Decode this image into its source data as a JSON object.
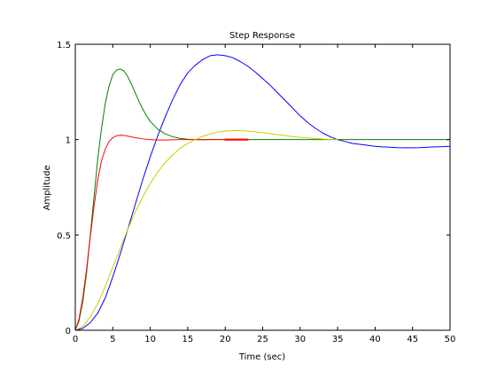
{
  "chart_data": {
    "type": "line",
    "title": "Step Response",
    "xlabel": "Time (sec)",
    "ylabel": "Amplitude",
    "xlim": [
      0,
      50
    ],
    "ylim": [
      0,
      1.5
    ],
    "xticks": [
      0,
      5,
      10,
      15,
      20,
      25,
      30,
      35,
      40,
      45,
      50
    ],
    "yticks": [
      0,
      0.5,
      1,
      1.5
    ],
    "xtick_labels": [
      "0",
      "5",
      "10",
      "15",
      "20",
      "25",
      "30",
      "35",
      "40",
      "45",
      "50"
    ],
    "ytick_labels": [
      "0",
      "0.5",
      "1",
      "1.5"
    ],
    "grid": false,
    "series": [
      {
        "color": "#0000ff",
        "x": [
          0,
          1,
          2,
          3,
          4,
          5,
          6,
          7,
          8,
          9,
          10,
          11,
          12,
          13,
          14,
          15,
          16,
          17,
          18,
          19,
          20,
          21,
          22,
          23,
          24,
          25,
          26,
          27,
          28,
          29,
          30,
          31,
          32,
          33,
          34,
          35,
          36,
          37,
          38,
          39,
          40,
          41,
          42,
          43,
          44,
          45,
          46,
          47,
          48,
          49,
          50
        ],
        "y": [
          0,
          0.01,
          0.04,
          0.09,
          0.17,
          0.28,
          0.4,
          0.53,
          0.66,
          0.79,
          0.91,
          1.02,
          1.12,
          1.21,
          1.29,
          1.35,
          1.39,
          1.42,
          1.44,
          1.445,
          1.44,
          1.43,
          1.41,
          1.385,
          1.355,
          1.32,
          1.285,
          1.245,
          1.205,
          1.165,
          1.125,
          1.09,
          1.06,
          1.035,
          1.015,
          1.0,
          0.99,
          0.98,
          0.975,
          0.97,
          0.965,
          0.962,
          0.96,
          0.958,
          0.957,
          0.957,
          0.958,
          0.96,
          0.962,
          0.963,
          0.965
        ]
      },
      {
        "color": "#008000",
        "x": [
          0,
          0.5,
          1,
          1.5,
          2,
          2.5,
          3,
          3.5,
          4,
          4.5,
          5,
          5.5,
          6,
          6.5,
          7,
          7.5,
          8,
          8.5,
          9,
          9.5,
          10,
          11,
          12,
          13,
          14,
          15,
          16,
          17,
          18,
          20,
          25,
          30,
          35,
          40,
          45,
          50
        ],
        "y": [
          0,
          0.05,
          0.15,
          0.3,
          0.5,
          0.7,
          0.9,
          1.06,
          1.19,
          1.28,
          1.34,
          1.365,
          1.37,
          1.36,
          1.33,
          1.29,
          1.245,
          1.2,
          1.16,
          1.125,
          1.095,
          1.055,
          1.03,
          1.015,
          1.006,
          1.002,
          1.0,
          0.999,
          1.0,
          1.0,
          1.0,
          1.0,
          1.0,
          1.0,
          1.0,
          1.0
        ]
      },
      {
        "color": "#ff0000",
        "x": [
          0,
          0.5,
          1,
          1.5,
          2,
          2.5,
          3,
          3.5,
          4,
          4.5,
          5,
          5.5,
          6,
          6.5,
          7,
          8,
          9,
          10,
          11,
          12,
          13,
          14,
          15,
          16,
          17,
          20,
          23
        ],
        "y": [
          0,
          0.06,
          0.17,
          0.32,
          0.49,
          0.65,
          0.79,
          0.89,
          0.95,
          0.99,
          1.01,
          1.02,
          1.023,
          1.022,
          1.018,
          1.01,
          1.004,
          1.0,
          0.998,
          0.998,
          0.999,
          1.0,
          1.0,
          1.0,
          1.0,
          1.0,
          1.0
        ]
      },
      {
        "color": "#cccc00",
        "x": [
          0,
          1,
          2,
          3,
          4,
          5,
          6,
          7,
          8,
          9,
          10,
          11,
          12,
          13,
          14,
          15,
          16,
          17,
          18,
          19,
          20,
          21,
          22,
          23,
          24,
          25,
          26,
          27,
          28,
          29,
          30,
          31,
          32,
          33,
          34,
          35
        ],
        "y": [
          0,
          0.02,
          0.07,
          0.14,
          0.23,
          0.33,
          0.43,
          0.53,
          0.62,
          0.7,
          0.77,
          0.83,
          0.88,
          0.92,
          0.955,
          0.98,
          1.0,
          1.017,
          1.03,
          1.04,
          1.045,
          1.047,
          1.047,
          1.045,
          1.041,
          1.036,
          1.031,
          1.026,
          1.021,
          1.016,
          1.012,
          1.009,
          1.006,
          1.003,
          1.001,
          1.0
        ]
      },
      {
        "color": "#ff0000",
        "x": [
          20,
          23
        ],
        "y": [
          1.0,
          1.0
        ]
      }
    ]
  }
}
